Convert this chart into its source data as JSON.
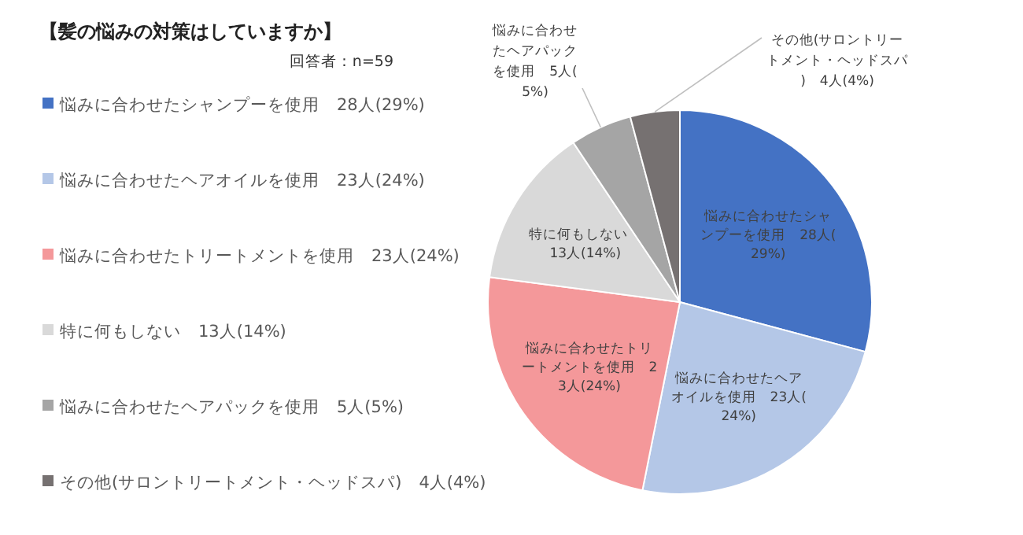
{
  "chart_data": {
    "type": "pie",
    "title": "【髪の悩みの対策はしていますか】",
    "subtitle": "回答者：n=59",
    "categories": [
      "悩みに合わせたシャンプーを使用",
      "悩みに合わせたヘアオイルを使用",
      "悩みに合わせたトリートメントを使用",
      "特に何もしない",
      "悩みに合わせたヘアパックを使用",
      "その他(サロントリートメント・ヘッドスパ)"
    ],
    "values": [
      28,
      23,
      23,
      13,
      5,
      4
    ],
    "value_labels": [
      "28人(29%)",
      "23人(24%)",
      "23人(24%)",
      "13人(14%)",
      "5人(5%)",
      "4人(4%)"
    ],
    "colors": [
      "#4472c4",
      "#b4c7e7",
      "#f4989a",
      "#d9d9d9",
      "#a5a5a5",
      "#767171"
    ],
    "legend": "left"
  }
}
